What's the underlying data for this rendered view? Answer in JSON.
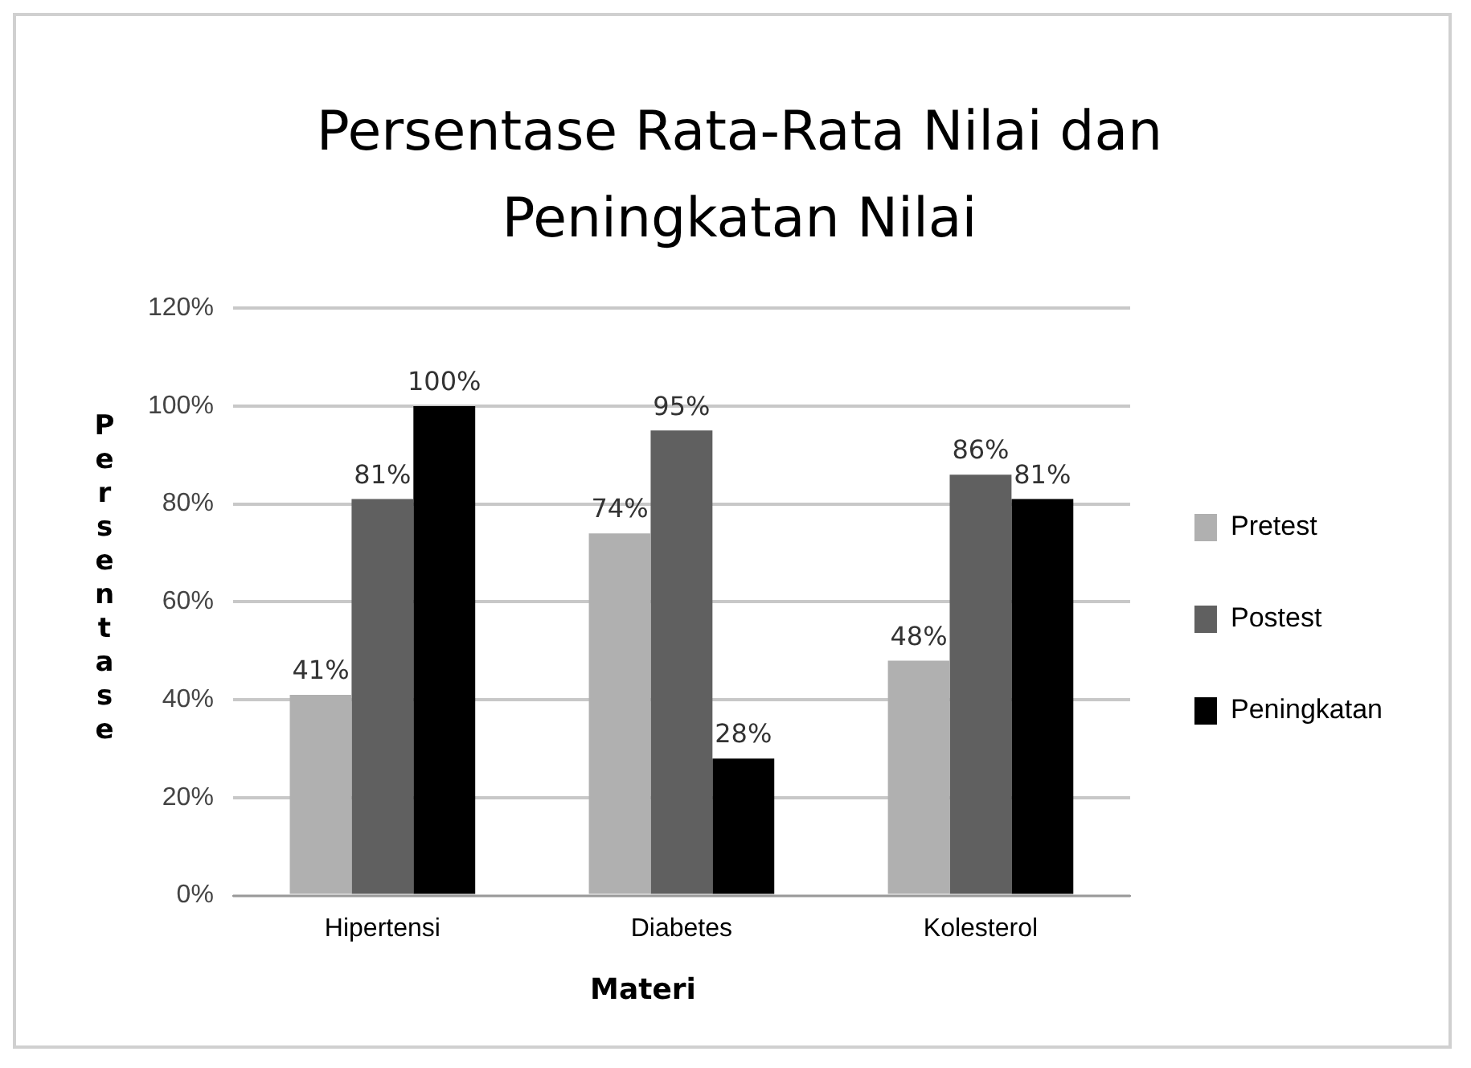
{
  "chart_data": {
    "type": "bar",
    "title": "Persentase Rata-Rata Nilai dan Peningkatan Nilai",
    "xlabel": "Materi",
    "ylabel": "Persentase",
    "categories": [
      "Hipertensi",
      "Diabetes",
      "Kolesterol"
    ],
    "series": [
      {
        "name": "Pretest",
        "color": "#b0b0b0",
        "values": [
          41,
          74,
          48
        ],
        "value_labels": [
          "41%",
          "74%",
          "48%"
        ]
      },
      {
        "name": "Postest",
        "color": "#606060",
        "values": [
          81,
          95,
          86
        ],
        "value_labels": [
          "81%",
          "95%",
          "86%"
        ]
      },
      {
        "name": "Peningkatan",
        "color": "#000000",
        "values": [
          100,
          28,
          81
        ],
        "value_labels": [
          "100%",
          "28%",
          "81%"
        ]
      }
    ],
    "ylim": [
      0,
      120
    ],
    "yticks": [
      {
        "value": 0,
        "label": "0%"
      },
      {
        "value": 20,
        "label": "20%"
      },
      {
        "value": 40,
        "label": "40%"
      },
      {
        "value": 60,
        "label": "60%"
      },
      {
        "value": 80,
        "label": "80%"
      },
      {
        "value": 100,
        "label": "100%"
      },
      {
        "value": 120,
        "label": "120%"
      }
    ],
    "grid": "y",
    "legend": "right"
  }
}
